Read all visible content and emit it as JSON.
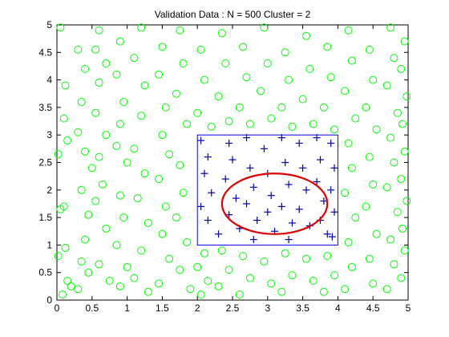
{
  "chart_data": {
    "type": "scatter",
    "title": "Validation Data : N = 500 Cluster = 2",
    "xlabel": "",
    "ylabel": "",
    "xlim": [
      0,
      5
    ],
    "ylim": [
      0,
      5
    ],
    "xticks": [
      "0",
      "0.5",
      "1",
      "1.5",
      "2",
      "2.5",
      "3",
      "3.5",
      "4",
      "4.5",
      "5"
    ],
    "yticks": [
      "0",
      "0.5",
      "1",
      "1.5",
      "2",
      "2.5",
      "3",
      "3.5",
      "4",
      "4.5",
      "5"
    ],
    "grid": false,
    "colors": {
      "circles": "#00ff00",
      "plus": "#0000aa",
      "box": "#0000ff",
      "ellipse": "#dd0000"
    },
    "box": {
      "x0": 2.0,
      "x1": 4.0,
      "y0": 1.0,
      "y1": 3.0
    },
    "ellipse": {
      "cx": 3.1,
      "cy": 1.75,
      "rx": 0.75,
      "ry": 0.55
    },
    "series": [
      {
        "marker": "circle",
        "points": [
          [
            0.05,
            4.95
          ],
          [
            0.12,
            3.9
          ],
          [
            0.1,
            3.3
          ],
          [
            0.15,
            2.9
          ],
          [
            0.02,
            2.65
          ],
          [
            0.05,
            1.65
          ],
          [
            0.1,
            1.7
          ],
          [
            0.12,
            0.95
          ],
          [
            0.02,
            0.8
          ],
          [
            0.15,
            0.35
          ],
          [
            0.2,
            0.25
          ],
          [
            0.08,
            0.1
          ],
          [
            0.3,
            4.55
          ],
          [
            0.4,
            4.2
          ],
          [
            0.35,
            3.6
          ],
          [
            0.3,
            3.05
          ],
          [
            0.4,
            2.7
          ],
          [
            0.5,
            2.4
          ],
          [
            0.35,
            2.0
          ],
          [
            0.45,
            1.55
          ],
          [
            0.4,
            1.1
          ],
          [
            0.35,
            0.7
          ],
          [
            0.45,
            0.5
          ],
          [
            0.3,
            0.2
          ],
          [
            0.6,
            4.9
          ],
          [
            0.55,
            4.55
          ],
          [
            0.7,
            4.3
          ],
          [
            0.6,
            3.95
          ],
          [
            0.55,
            3.4
          ],
          [
            0.7,
            3.0
          ],
          [
            0.6,
            2.6
          ],
          [
            0.65,
            2.1
          ],
          [
            0.55,
            1.8
          ],
          [
            0.7,
            1.3
          ],
          [
            0.6,
            0.65
          ],
          [
            0.75,
            0.35
          ],
          [
            0.9,
            4.7
          ],
          [
            0.85,
            4.1
          ],
          [
            0.95,
            3.6
          ],
          [
            0.9,
            3.2
          ],
          [
            0.85,
            2.8
          ],
          [
            1.0,
            2.5
          ],
          [
            0.9,
            1.9
          ],
          [
            0.95,
            1.5
          ],
          [
            0.85,
            1.0
          ],
          [
            1.0,
            0.6
          ],
          [
            0.9,
            0.25
          ],
          [
            1.2,
            4.95
          ],
          [
            1.1,
            4.4
          ],
          [
            1.25,
            3.9
          ],
          [
            1.2,
            3.35
          ],
          [
            1.1,
            2.75
          ],
          [
            1.25,
            2.3
          ],
          [
            1.15,
            1.85
          ],
          [
            1.3,
            1.4
          ],
          [
            1.2,
            0.9
          ],
          [
            1.1,
            0.4
          ],
          [
            1.3,
            0.15
          ],
          [
            1.5,
            4.6
          ],
          [
            1.45,
            4.1
          ],
          [
            1.55,
            3.5
          ],
          [
            1.5,
            3.0
          ],
          [
            1.6,
            2.65
          ],
          [
            1.45,
            2.2
          ],
          [
            1.55,
            1.7
          ],
          [
            1.5,
            1.2
          ],
          [
            1.6,
            0.75
          ],
          [
            1.45,
            0.3
          ],
          [
            1.75,
            4.9
          ],
          [
            1.8,
            4.3
          ],
          [
            1.7,
            3.75
          ],
          [
            1.85,
            3.2
          ],
          [
            1.75,
            2.45
          ],
          [
            1.8,
            1.95
          ],
          [
            1.7,
            1.5
          ],
          [
            1.85,
            1.05
          ],
          [
            1.75,
            0.55
          ],
          [
            1.9,
            0.2
          ],
          [
            2.05,
            4.55
          ],
          [
            2.1,
            4.0
          ],
          [
            2.0,
            3.4
          ],
          [
            2.2,
            3.15
          ],
          [
            2.1,
            0.85
          ],
          [
            2.0,
            0.6
          ],
          [
            2.15,
            0.35
          ],
          [
            2.05,
            0.1
          ],
          [
            2.35,
            4.85
          ],
          [
            2.4,
            4.3
          ],
          [
            2.3,
            3.7
          ],
          [
            2.45,
            3.25
          ],
          [
            2.35,
            0.9
          ],
          [
            2.45,
            0.55
          ],
          [
            2.3,
            0.25
          ],
          [
            2.65,
            4.6
          ],
          [
            2.7,
            4.05
          ],
          [
            2.6,
            3.5
          ],
          [
            2.75,
            3.2
          ],
          [
            2.65,
            0.8
          ],
          [
            2.75,
            0.4
          ],
          [
            2.6,
            0.1
          ],
          [
            2.95,
            4.95
          ],
          [
            3.0,
            4.3
          ],
          [
            2.9,
            3.8
          ],
          [
            3.05,
            3.3
          ],
          [
            2.95,
            0.7
          ],
          [
            3.05,
            0.3
          ],
          [
            3.25,
            4.5
          ],
          [
            3.3,
            4.0
          ],
          [
            3.2,
            3.5
          ],
          [
            3.35,
            3.15
          ],
          [
            3.25,
            0.85
          ],
          [
            3.35,
            0.45
          ],
          [
            3.2,
            0.15
          ],
          [
            3.55,
            4.8
          ],
          [
            3.6,
            4.2
          ],
          [
            3.5,
            3.65
          ],
          [
            3.65,
            3.2
          ],
          [
            3.55,
            0.75
          ],
          [
            3.65,
            0.35
          ],
          [
            3.85,
            4.6
          ],
          [
            3.9,
            4.05
          ],
          [
            3.8,
            3.5
          ],
          [
            3.95,
            3.1
          ],
          [
            3.85,
            0.8
          ],
          [
            3.95,
            0.45
          ],
          [
            3.8,
            0.15
          ],
          [
            4.15,
            4.9
          ],
          [
            4.2,
            4.35
          ],
          [
            4.1,
            3.8
          ],
          [
            4.25,
            3.3
          ],
          [
            4.15,
            2.85
          ],
          [
            4.2,
            2.4
          ],
          [
            4.1,
            1.95
          ],
          [
            4.25,
            1.5
          ],
          [
            4.15,
            1.05
          ],
          [
            4.2,
            0.6
          ],
          [
            4.1,
            0.2
          ],
          [
            4.45,
            4.55
          ],
          [
            4.5,
            4.0
          ],
          [
            4.4,
            3.5
          ],
          [
            4.55,
            3.1
          ],
          [
            4.45,
            2.6
          ],
          [
            4.5,
            2.1
          ],
          [
            4.4,
            1.7
          ],
          [
            4.55,
            1.2
          ],
          [
            4.45,
            0.75
          ],
          [
            4.5,
            0.3
          ],
          [
            4.75,
            4.95
          ],
          [
            4.8,
            4.4
          ],
          [
            4.7,
            3.9
          ],
          [
            4.85,
            3.4
          ],
          [
            4.75,
            2.95
          ],
          [
            4.8,
            2.5
          ],
          [
            4.7,
            2.05
          ],
          [
            4.85,
            1.6
          ],
          [
            4.75,
            1.1
          ],
          [
            4.8,
            0.65
          ],
          [
            4.7,
            0.2
          ],
          [
            4.95,
            4.7
          ],
          [
            4.9,
            4.2
          ],
          [
            4.98,
            3.7
          ],
          [
            4.92,
            3.2
          ],
          [
            4.95,
            2.7
          ],
          [
            4.9,
            2.2
          ],
          [
            4.98,
            1.8
          ],
          [
            4.92,
            1.3
          ],
          [
            4.95,
            0.9
          ],
          [
            4.9,
            0.4
          ]
        ]
      },
      {
        "marker": "plus",
        "points": [
          [
            2.05,
            2.9
          ],
          [
            2.15,
            2.6
          ],
          [
            2.1,
            2.3
          ],
          [
            2.2,
            1.95
          ],
          [
            2.05,
            1.7
          ],
          [
            2.15,
            1.45
          ],
          [
            2.3,
            1.2
          ],
          [
            2.45,
            2.85
          ],
          [
            2.5,
            2.55
          ],
          [
            2.4,
            2.2
          ],
          [
            2.55,
            1.85
          ],
          [
            2.45,
            1.55
          ],
          [
            2.6,
            1.3
          ],
          [
            2.7,
            2.95
          ],
          [
            2.75,
            2.4
          ],
          [
            2.8,
            2.05
          ],
          [
            2.7,
            1.75
          ],
          [
            2.85,
            1.45
          ],
          [
            2.8,
            1.1
          ],
          [
            2.95,
            2.75
          ],
          [
            3.0,
            2.3
          ],
          [
            3.05,
            1.9
          ],
          [
            3.0,
            1.6
          ],
          [
            3.1,
            1.25
          ],
          [
            3.2,
            2.95
          ],
          [
            3.25,
            2.5
          ],
          [
            3.3,
            2.1
          ],
          [
            3.2,
            1.7
          ],
          [
            3.35,
            1.4
          ],
          [
            3.3,
            1.1
          ],
          [
            3.45,
            2.85
          ],
          [
            3.5,
            2.4
          ],
          [
            3.55,
            2.0
          ],
          [
            3.45,
            1.65
          ],
          [
            3.6,
            1.35
          ],
          [
            3.7,
            2.95
          ],
          [
            3.75,
            2.55
          ],
          [
            3.7,
            2.15
          ],
          [
            3.8,
            1.8
          ],
          [
            3.75,
            1.45
          ],
          [
            3.85,
            1.2
          ],
          [
            3.9,
            2.85
          ],
          [
            3.95,
            2.4
          ],
          [
            3.9,
            2.0
          ],
          [
            3.95,
            1.6
          ],
          [
            3.92,
            1.15
          ]
        ]
      }
    ]
  }
}
